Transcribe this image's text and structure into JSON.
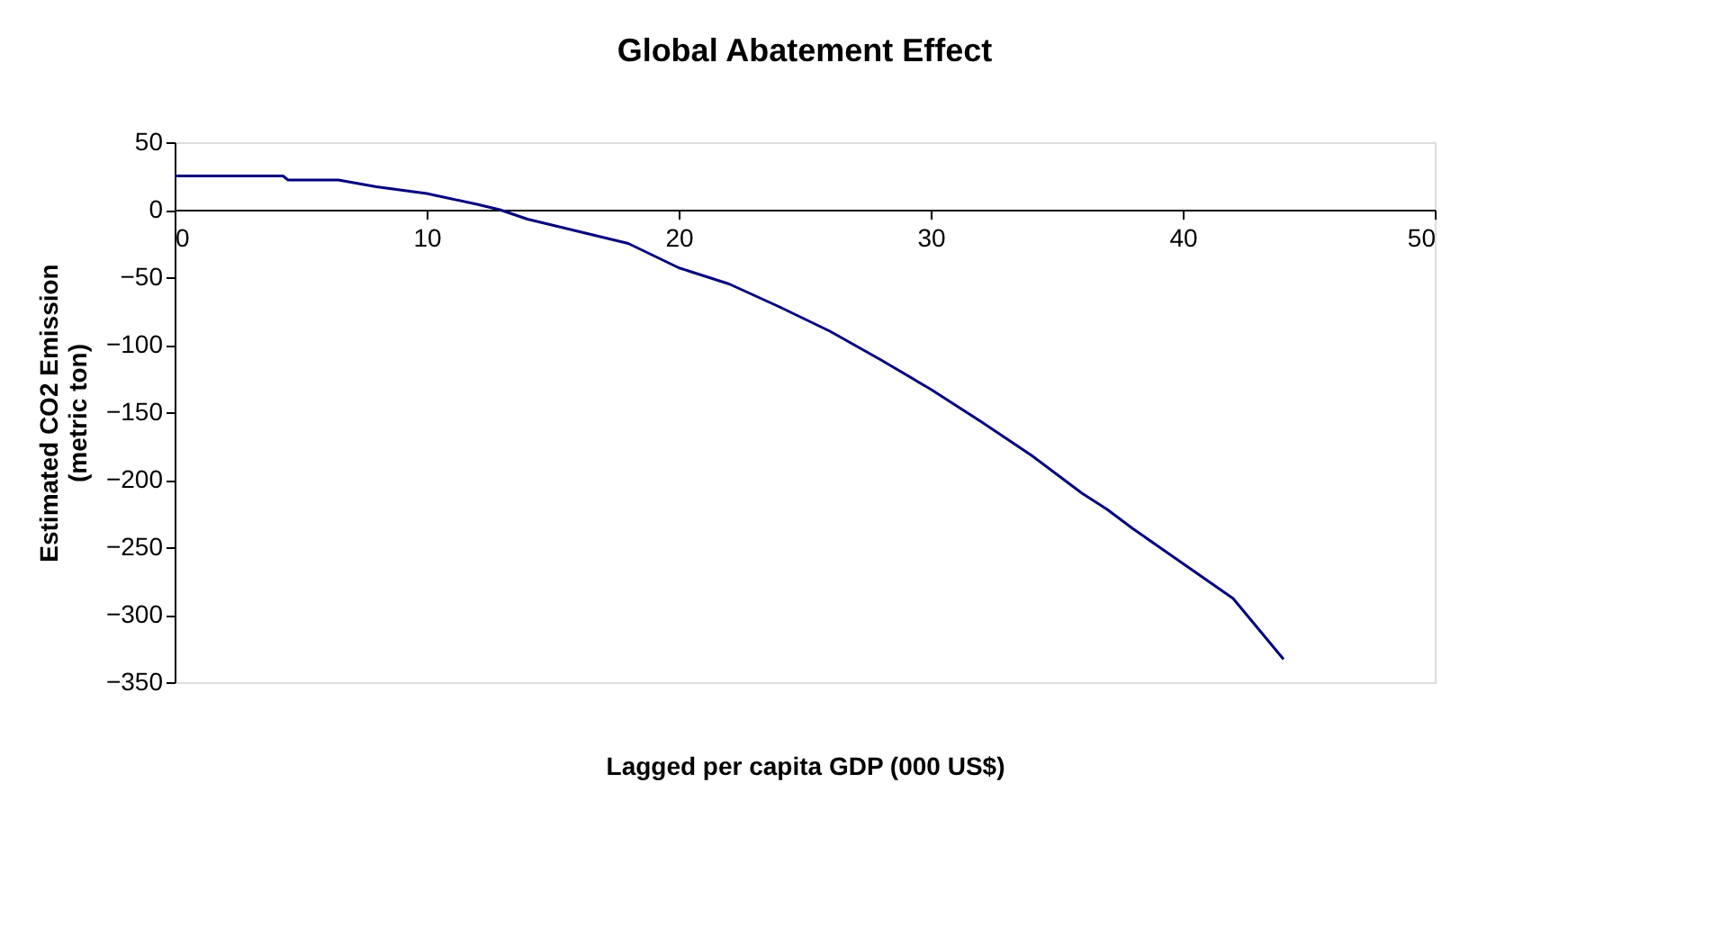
{
  "chart_data": {
    "type": "line",
    "title": "Global Abatement Effect",
    "xlabel": "Lagged per capita GDP (000 US$)",
    "ylabel": "Estimated CO2 Emission\n(metric ton)",
    "x": [
      0,
      4.3,
      4.5,
      6.5,
      8,
      10,
      12,
      12.9,
      14,
      16,
      18,
      20,
      22,
      24,
      26,
      28,
      30,
      32,
      34,
      36,
      37,
      38,
      40,
      42,
      44
    ],
    "series": [
      {
        "color": "#000080",
        "values": [
          25,
          25,
          22,
          22,
          17,
          12,
          4,
          0,
          -7,
          -16,
          -25,
          -43,
          -55,
          -72,
          -90,
          -111,
          -133,
          -157,
          -182,
          -210,
          -222,
          -236,
          -262,
          -288,
          -333
        ]
      }
    ],
    "xlim": [
      0,
      50
    ],
    "xticks": [
      0,
      10,
      20,
      30,
      40,
      50
    ],
    "ylim": [
      -350,
      50
    ],
    "yticks": [
      50,
      0,
      -50,
      -100,
      -150,
      -200,
      -250,
      -300,
      -350
    ],
    "grid": false,
    "legend": false,
    "marker": "none",
    "line_style": "solid"
  }
}
